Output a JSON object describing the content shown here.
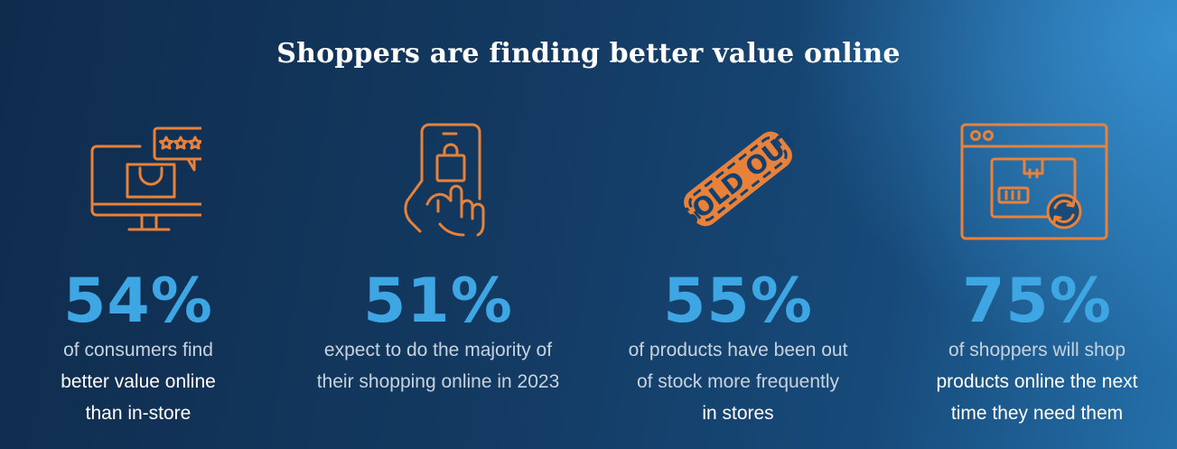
{
  "title": "Shoppers are finding better value online",
  "stats": [
    {
      "icon": "monitor-shopping-bag-rating-icon",
      "value": "54%",
      "lines": [
        "of consumers find",
        "better value online",
        "than in-store"
      ]
    },
    {
      "icon": "phone-shopping-hand-icon",
      "value": "51%",
      "lines": [
        "expect to do the majority of",
        "their shopping online in 2023"
      ]
    },
    {
      "icon": "sold-out-stamp-icon",
      "value": "55%",
      "lines": [
        "of products have been out",
        "of stock more frequently",
        "in stores"
      ]
    },
    {
      "icon": "browser-package-refresh-icon",
      "value": "75%",
      "lines": [
        "of shoppers will shop",
        "products online the next",
        "time they need them"
      ]
    }
  ],
  "colors": {
    "accent_orange": "#e8823b",
    "stat_blue": "#3ea6e3",
    "text_dim": "#c7d3df",
    "text_white": "#ffffff"
  }
}
